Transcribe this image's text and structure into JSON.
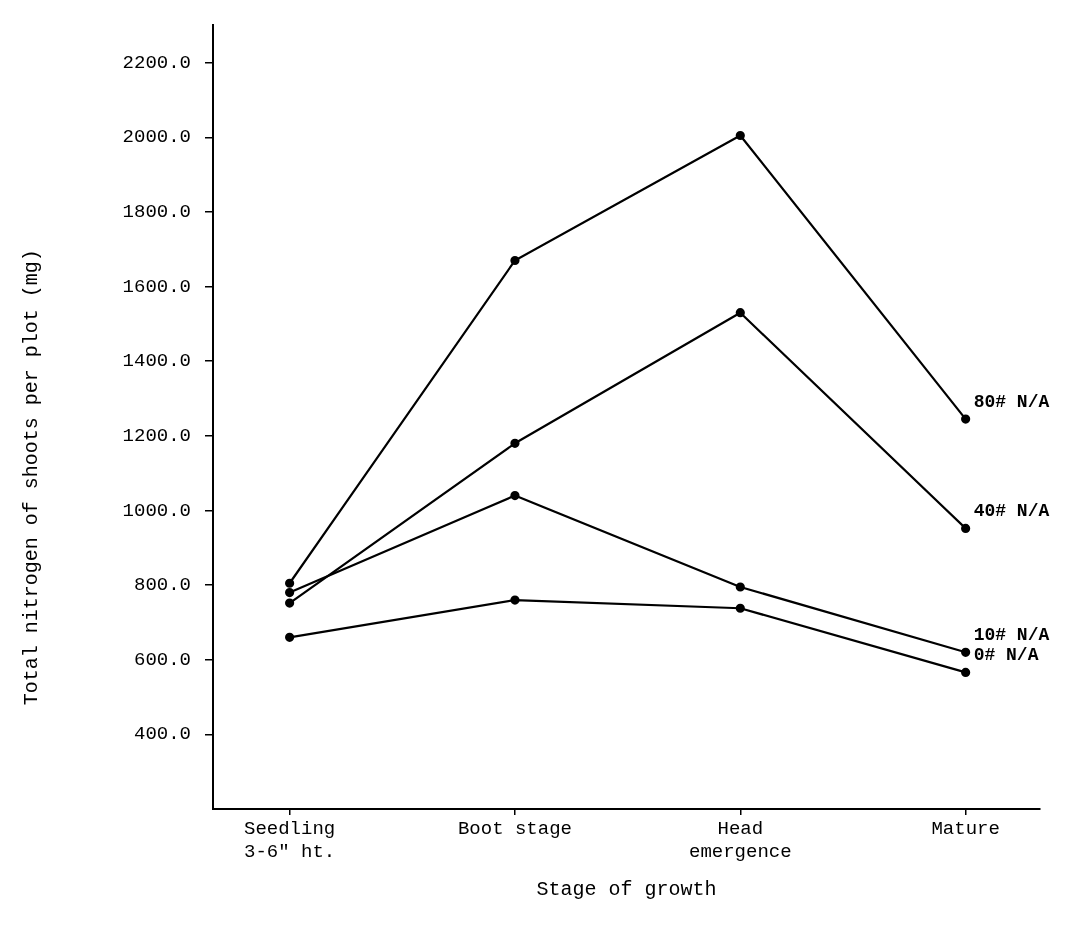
{
  "chart_data": {
    "type": "line",
    "xlabel": "Stage of growth",
    "ylabel": "Total nitrogen of shoots per plot (mg)",
    "categories": [
      "Seedling\n3-6\" ht.",
      "Boot stage",
      "Head\nemergence",
      "Mature"
    ],
    "series": [
      {
        "name": "80# N/A",
        "color": "#000000",
        "values": [
          805,
          1670,
          2005,
          1245
        ]
      },
      {
        "name": "40# N/A",
        "color": "#000000",
        "values": [
          752,
          1180,
          1530,
          952
        ]
      },
      {
        "name": "10# N/A",
        "color": "#000000",
        "values": [
          780,
          1040,
          795,
          620
        ]
      },
      {
        "name": "0# N/A",
        "color": "#000000",
        "values": [
          660,
          760,
          738,
          566
        ]
      }
    ],
    "ylim": [
      200,
      2300
    ],
    "yticks": [
      {
        "value": 400,
        "label": "400.0"
      },
      {
        "value": 600,
        "label": "600.0"
      },
      {
        "value": 800,
        "label": "800.0"
      },
      {
        "value": 1000,
        "label": "1000.0"
      },
      {
        "value": 1200,
        "label": "1200.0"
      },
      {
        "value": 1400,
        "label": "1400.0"
      },
      {
        "value": 1600,
        "label": "1600.0"
      },
      {
        "value": 1800,
        "label": "1800.0"
      },
      {
        "value": 2000,
        "label": "2000.0"
      },
      {
        "value": 2200,
        "label": "2200.0"
      }
    ],
    "grid": false,
    "legend": false,
    "marker": "circle",
    "line_style": "solid"
  }
}
